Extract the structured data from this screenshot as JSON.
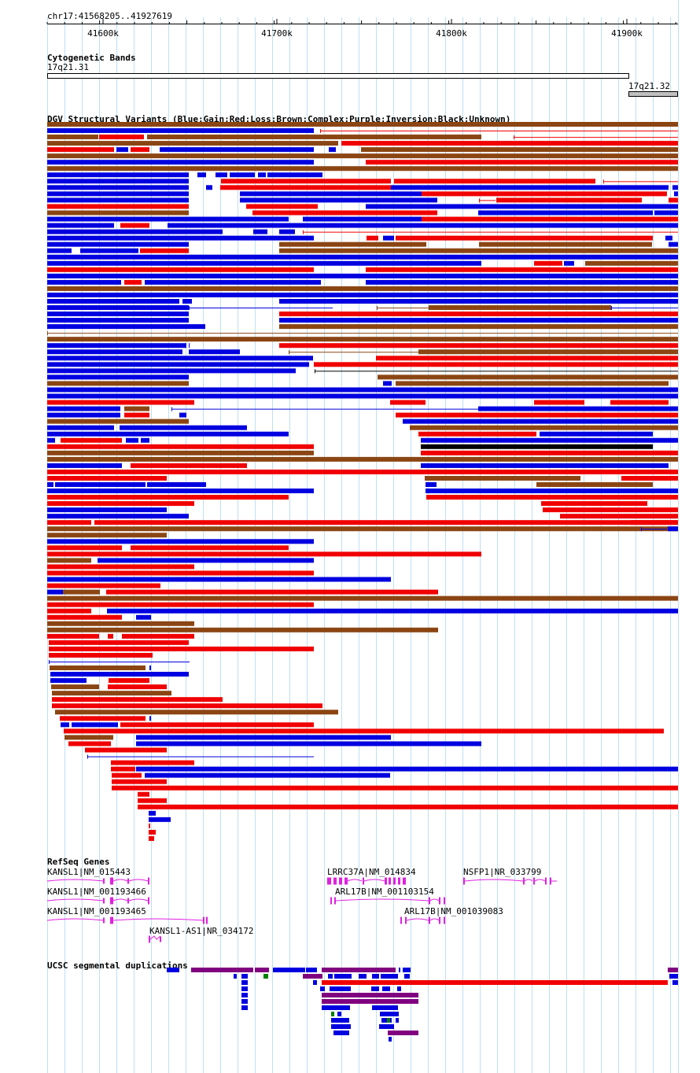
{
  "position": "chr17:41568205..41927619",
  "ruler": {
    "ticks": [
      "41600k",
      "41700k",
      "41800k",
      "41900k"
    ]
  },
  "tracks": {
    "cytobands": {
      "title": "Cytogenetic Bands",
      "bands": [
        {
          "label": "17q21.31",
          "color": "#ffffff"
        },
        {
          "label": "17q21.32",
          "color": "#c0c0c0"
        }
      ]
    },
    "dgv": {
      "title": "DGV Structural Variants (Blue:Gain;Red:Loss;Brown:Complex;Purple:Inversion;Black:Unknown)",
      "legend_colors": {
        "gain": "#0000e0",
        "loss": "#f00000",
        "complex": "#8b4513",
        "inversion": "#800080",
        "unknown": "#000000"
      }
    },
    "refseq": {
      "title": "RefSeq Genes",
      "gene_color": "#e020e0",
      "genes": [
        "KANSL1|NM_015443",
        "KANSL1|NM_001193466",
        "KANSL1|NM_001193465",
        "KANSL1-AS1|NR_034172",
        "LRRC37A|NM_014834",
        "ARL17B|NM_001103154",
        "ARL17B|NM_001039083",
        "NSFP1|NR_033799"
      ]
    },
    "segdup": {
      "title": "UCSC segmental duplications"
    }
  }
}
